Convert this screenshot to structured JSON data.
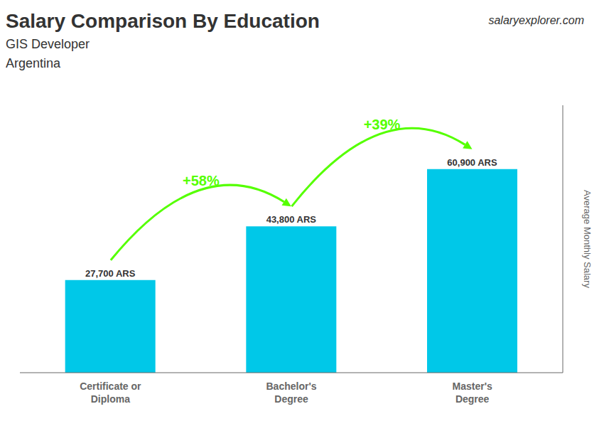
{
  "chart_data": {
    "type": "bar",
    "title": "Salary Comparison By Education",
    "subtitle": [
      "GIS Developer",
      "Argentina"
    ],
    "categories": [
      "Certificate or\nDiploma",
      "Bachelor's\nDegree",
      "Master's\nDegree"
    ],
    "values": [
      27700,
      43800,
      60900
    ],
    "value_labels": [
      "27,700 ARS",
      "43,800 ARS",
      "60,900 ARS"
    ],
    "data_labels": true,
    "color": "#00C8E8",
    "ylabel": "Average Monthly Salary",
    "ylim": [
      0,
      80000
    ],
    "tick_labels": "x",
    "grid": false,
    "annotations": [
      {
        "text": "+58%",
        "color": "#55FF00"
      },
      {
        "text": "+39%",
        "color": "#55FF00"
      },
      {
        "text": "salaryexplorer.com"
      }
    ]
  }
}
